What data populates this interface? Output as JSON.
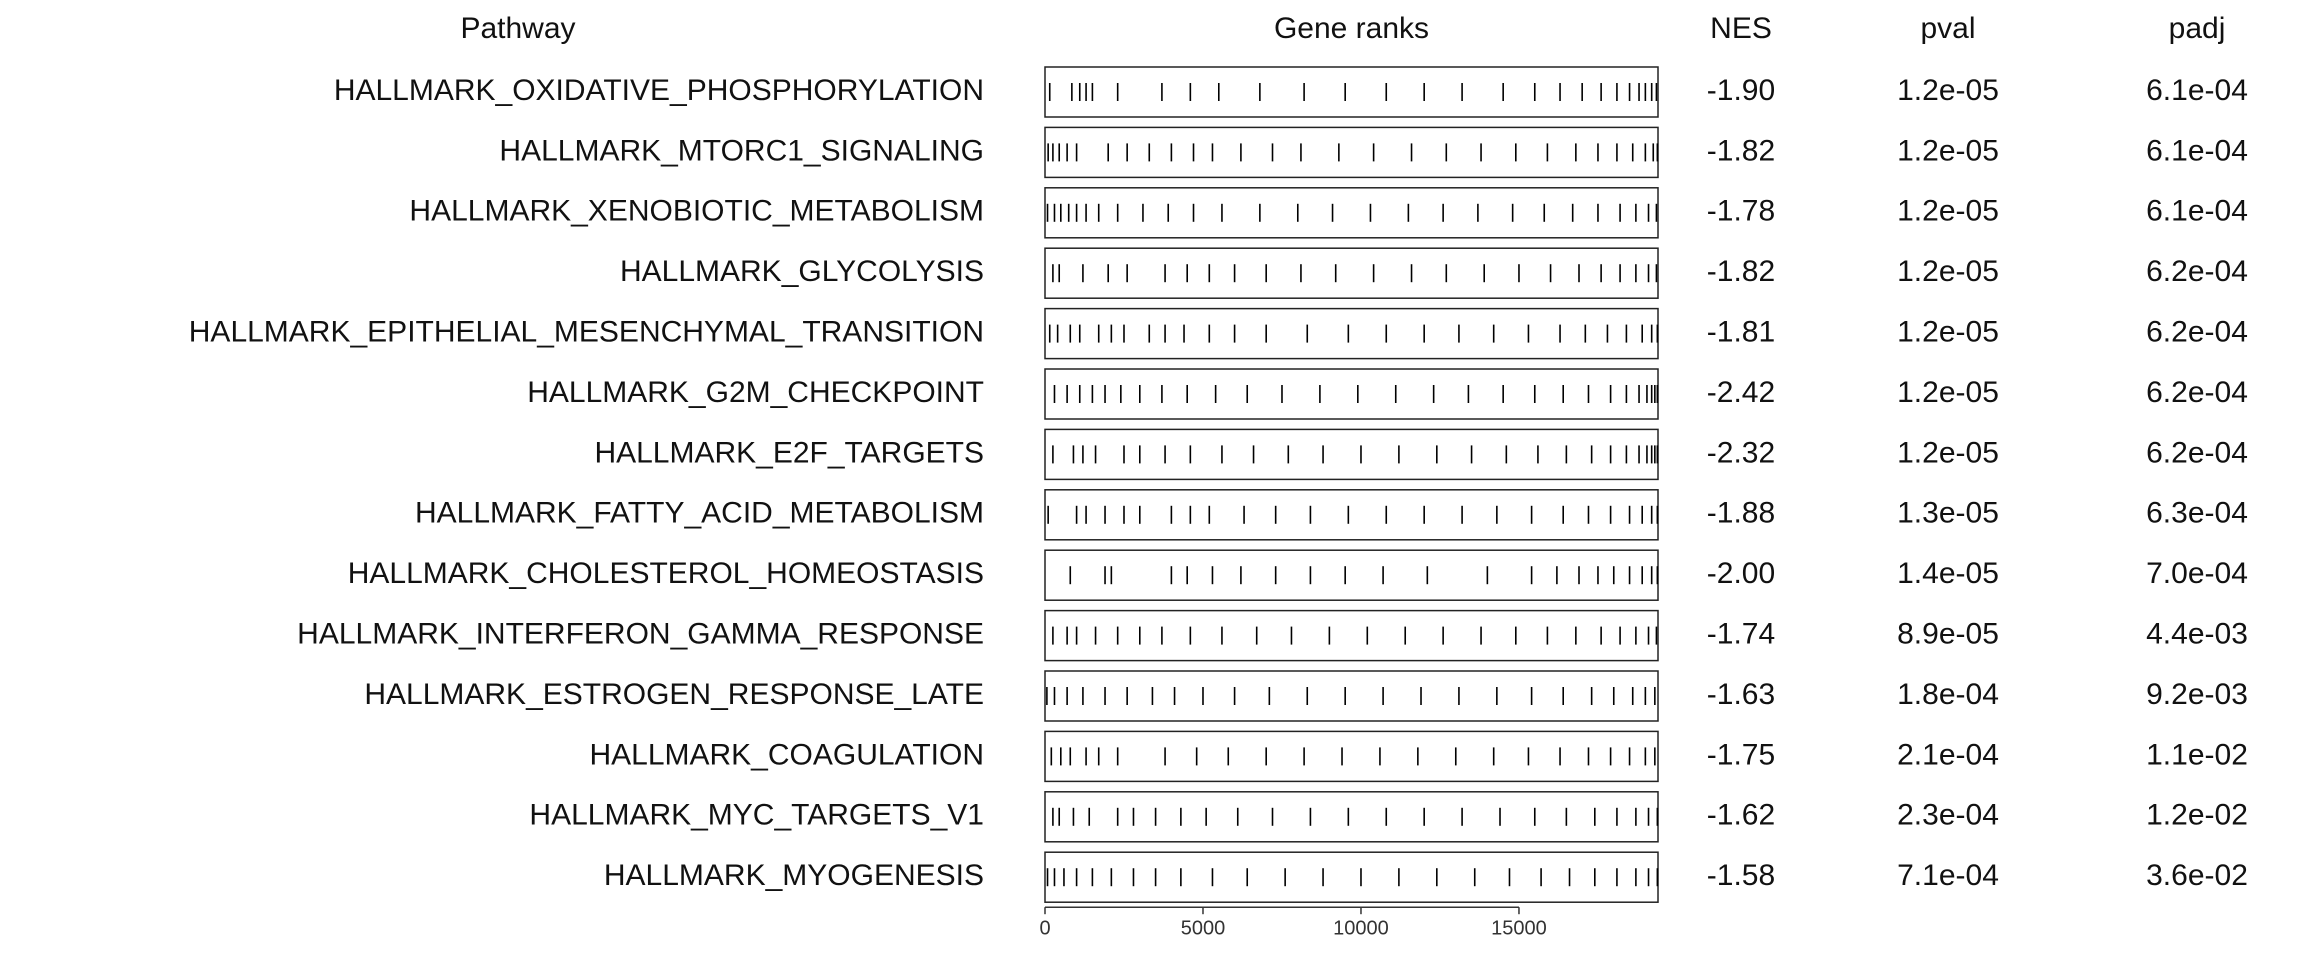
{
  "chart_data": {
    "type": "gsea-table",
    "columns": [
      "Pathway",
      "Gene ranks",
      "NES",
      "pval",
      "padj"
    ],
    "xlim": [
      0,
      19400
    ],
    "xticks": [
      0,
      5000,
      10000,
      15000
    ],
    "rows": [
      {
        "pathway": "HALLMARK_OXIDATIVE_PHOSPHORYLATION",
        "nes": "-1.90",
        "pval": "1.2e-05",
        "padj": "6.1e-04",
        "ranks": [
          150,
          850,
          1100,
          1300,
          1500,
          2300,
          3700,
          4600,
          5500,
          6800,
          8200,
          9500,
          10800,
          12000,
          13200,
          14500,
          15500,
          16300,
          17000,
          17600,
          18100,
          18500,
          18800,
          19000,
          19200,
          19350
        ]
      },
      {
        "pathway": "HALLMARK_MTORC1_SIGNALING",
        "nes": "-1.82",
        "pval": "1.2e-05",
        "padj": "6.1e-04",
        "ranks": [
          100,
          250,
          450,
          700,
          1000,
          2000,
          2600,
          3300,
          4000,
          4700,
          5300,
          6200,
          7200,
          8100,
          9300,
          10400,
          11600,
          12700,
          13800,
          14900,
          15900,
          16800,
          17500,
          18100,
          18600,
          19000,
          19250,
          19380
        ]
      },
      {
        "pathway": "HALLMARK_XENOBIOTIC_METABOLISM",
        "nes": "-1.78",
        "pval": "1.2e-05",
        "padj": "6.1e-04",
        "ranks": [
          80,
          300,
          500,
          750,
          1000,
          1300,
          1700,
          2300,
          3100,
          3900,
          4700,
          5600,
          6800,
          8000,
          9100,
          10300,
          11500,
          12600,
          13700,
          14800,
          15800,
          16700,
          17500,
          18200,
          18700,
          19100,
          19350
        ]
      },
      {
        "pathway": "HALLMARK_GLYCOLYSIS",
        "nes": "-1.82",
        "pval": "1.2e-05",
        "padj": "6.2e-04",
        "ranks": [
          250,
          450,
          1200,
          2000,
          2600,
          3800,
          4500,
          5200,
          6000,
          7000,
          8100,
          9200,
          10400,
          11600,
          12700,
          13900,
          15000,
          16000,
          16900,
          17600,
          18200,
          18700,
          19100,
          19350
        ]
      },
      {
        "pathway": "HALLMARK_EPITHELIAL_MESENCHYMAL_TRANSITION",
        "nes": "-1.81",
        "pval": "1.2e-05",
        "padj": "6.2e-04",
        "ranks": [
          150,
          400,
          800,
          1100,
          1700,
          2100,
          2500,
          3300,
          3800,
          4400,
          5200,
          6000,
          7000,
          8300,
          9600,
          10800,
          12000,
          13100,
          14200,
          15300,
          16300,
          17100,
          17800,
          18400,
          18900,
          19200,
          19380
        ]
      },
      {
        "pathway": "HALLMARK_G2M_CHECKPOINT",
        "nes": "-2.42",
        "pval": "1.2e-05",
        "padj": "6.2e-04",
        "ranks": [
          300,
          700,
          1100,
          1500,
          1900,
          2400,
          3000,
          3700,
          4500,
          5400,
          6400,
          7500,
          8700,
          9900,
          11100,
          12300,
          13400,
          14500,
          15500,
          16400,
          17200,
          17900,
          18400,
          18800,
          19050,
          19200,
          19300,
          19380
        ]
      },
      {
        "pathway": "HALLMARK_E2F_TARGETS",
        "nes": "-2.32",
        "pval": "1.2e-05",
        "padj": "6.2e-04",
        "ranks": [
          250,
          900,
          1200,
          1600,
          2500,
          3000,
          3800,
          4600,
          5600,
          6600,
          7700,
          8800,
          10000,
          11200,
          12400,
          13500,
          14600,
          15600,
          16500,
          17300,
          17900,
          18400,
          18800,
          19050,
          19200,
          19300,
          19380
        ]
      },
      {
        "pathway": "HALLMARK_FATTY_ACID_METABOLISM",
        "nes": "-1.88",
        "pval": "1.3e-05",
        "padj": "6.3e-04",
        "ranks": [
          100,
          1000,
          1300,
          1900,
          2500,
          3000,
          4000,
          4600,
          5200,
          6300,
          7300,
          8400,
          9600,
          10800,
          12000,
          13200,
          14300,
          15400,
          16400,
          17200,
          17900,
          18500,
          18900,
          19200,
          19380
        ]
      },
      {
        "pathway": "HALLMARK_CHOLESTEROL_HOMEOSTASIS",
        "nes": "-2.00",
        "pval": "1.4e-05",
        "padj": "7.0e-04",
        "ranks": [
          800,
          1900,
          2100,
          4000,
          4500,
          5300,
          6200,
          7300,
          8400,
          9500,
          10700,
          12100,
          14000,
          15400,
          16200,
          16900,
          17500,
          18000,
          18500,
          18900,
          19200,
          19380
        ]
      },
      {
        "pathway": "HALLMARK_INTERFERON_GAMMA_RESPONSE",
        "nes": "-1.74",
        "pval": "8.9e-05",
        "padj": "4.4e-03",
        "ranks": [
          250,
          700,
          1000,
          1600,
          2300,
          3000,
          3700,
          4600,
          5600,
          6700,
          7800,
          9000,
          10200,
          11400,
          12600,
          13800,
          14900,
          15900,
          16800,
          17600,
          18200,
          18700,
          19100,
          19350
        ]
      },
      {
        "pathway": "HALLMARK_ESTROGEN_RESPONSE_LATE",
        "nes": "-1.63",
        "pval": "1.8e-04",
        "padj": "9.2e-03",
        "ranks": [
          60,
          300,
          700,
          1200,
          1900,
          2600,
          3400,
          4100,
          5000,
          6000,
          7100,
          8300,
          9500,
          10700,
          11900,
          13100,
          14300,
          15400,
          16400,
          17300,
          18000,
          18600,
          19000,
          19300
        ]
      },
      {
        "pathway": "HALLMARK_COAGULATION",
        "nes": "-1.75",
        "pval": "2.1e-04",
        "padj": "1.1e-02",
        "ranks": [
          200,
          500,
          800,
          1300,
          1700,
          2300,
          3800,
          4800,
          5800,
          7000,
          8200,
          9400,
          10600,
          11800,
          13000,
          14200,
          15300,
          16300,
          17200,
          17900,
          18500,
          19000,
          19300
        ]
      },
      {
        "pathway": "HALLMARK_MYC_TARGETS_V1",
        "nes": "-1.62",
        "pval": "2.3e-04",
        "padj": "1.2e-02",
        "ranks": [
          250,
          450,
          900,
          1400,
          2300,
          2800,
          3500,
          4300,
          5100,
          6100,
          7200,
          8400,
          9600,
          10800,
          12000,
          13200,
          14400,
          15500,
          16500,
          17400,
          18100,
          18700,
          19100,
          19380
        ]
      },
      {
        "pathway": "HALLMARK_MYOGENESIS",
        "nes": "-1.58",
        "pval": "7.1e-04",
        "padj": "3.6e-02",
        "ranks": [
          80,
          300,
          600,
          1000,
          1500,
          2100,
          2800,
          3500,
          4300,
          5300,
          6400,
          7600,
          8800,
          10000,
          11200,
          12400,
          13600,
          14700,
          15700,
          16600,
          17400,
          18100,
          18700,
          19100,
          19380
        ]
      }
    ]
  }
}
